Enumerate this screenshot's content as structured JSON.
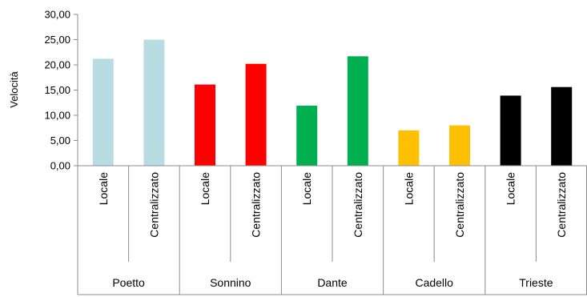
{
  "chart_data": {
    "type": "bar",
    "ylabel": "Velocità",
    "ylim": [
      0,
      30
    ],
    "yticks": [
      0,
      5,
      10,
      15,
      20,
      25,
      30
    ],
    "ytick_labels": [
      "0,00",
      "5,00",
      "10,00",
      "15,00",
      "20,00",
      "25,00",
      "30,00"
    ],
    "grid": false,
    "legend": "none",
    "groups": [
      {
        "name": "Poetto",
        "color": "#b7dde3",
        "bars": [
          {
            "category": "Locale",
            "value": 21.2
          },
          {
            "category": "Centralizzato",
            "value": 25.0
          }
        ]
      },
      {
        "name": "Sonnino",
        "color": "#ff0000",
        "bars": [
          {
            "category": "Locale",
            "value": 16.1
          },
          {
            "category": "Centralizzato",
            "value": 20.2
          }
        ]
      },
      {
        "name": "Dante",
        "color": "#00b050",
        "bars": [
          {
            "category": "Locale",
            "value": 11.9
          },
          {
            "category": "Centralizzato",
            "value": 21.7
          }
        ]
      },
      {
        "name": "Cadello",
        "color": "#ffc000",
        "bars": [
          {
            "category": "Locale",
            "value": 7.0
          },
          {
            "category": "Centralizzato",
            "value": 8.0
          }
        ]
      },
      {
        "name": "Trieste",
        "color": "#000000",
        "bars": [
          {
            "category": "Locale",
            "value": 13.9
          },
          {
            "category": "Centralizzato",
            "value": 15.6
          }
        ]
      }
    ]
  }
}
